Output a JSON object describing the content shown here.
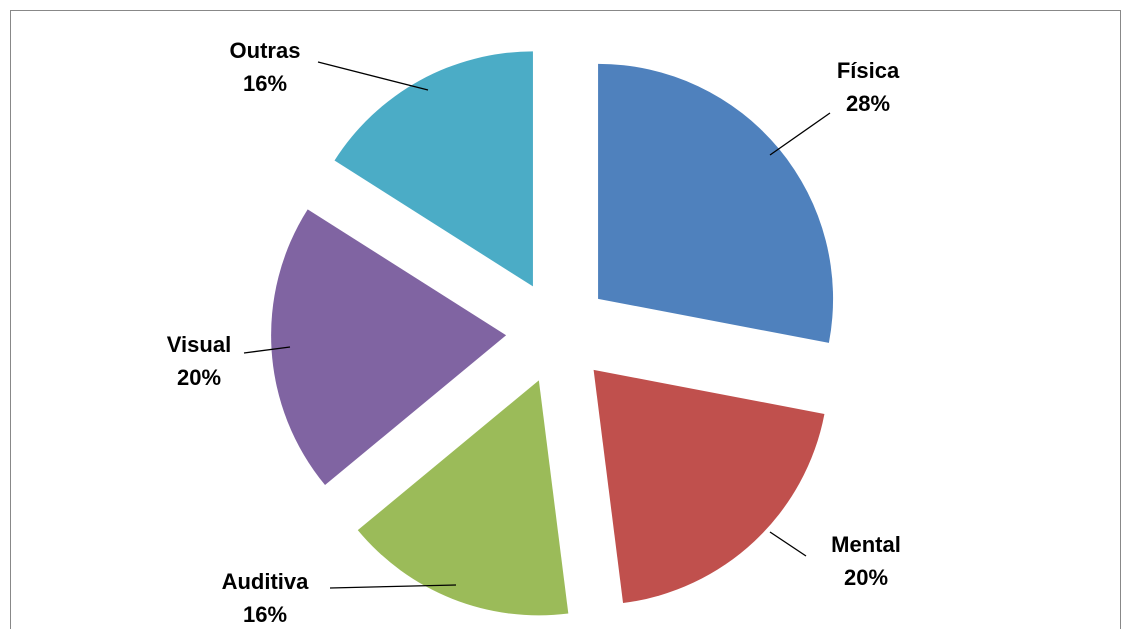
{
  "chart_data": {
    "type": "pie",
    "categories": [
      "Física",
      "Mental",
      "Auditiva",
      "Visual",
      "Outras"
    ],
    "values": [
      28,
      20,
      16,
      20,
      16
    ],
    "value_labels": [
      "28%",
      "20%",
      "16%",
      "20%",
      "16%"
    ],
    "colors": [
      "#4f81bd",
      "#c0504d",
      "#9bbb59",
      "#8064a2",
      "#4bacc6"
    ]
  }
}
